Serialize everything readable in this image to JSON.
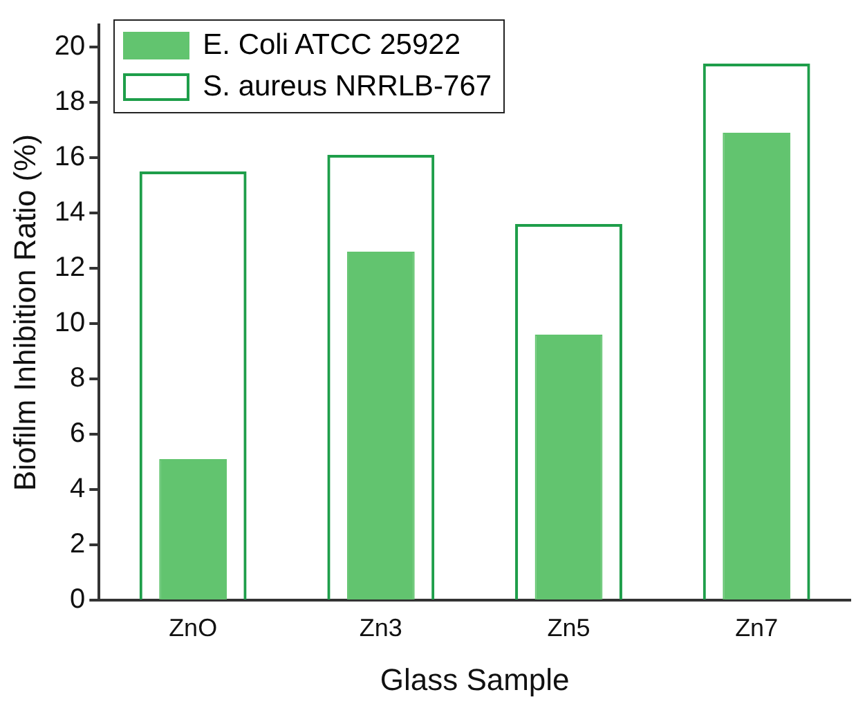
{
  "chart_data": {
    "type": "bar",
    "xlabel": "Glass Sample",
    "ylabel": "Biofilm Inhibition Ratio (%)",
    "categories": [
      "ZnO",
      "Zn3",
      "Zn5",
      "Zn7"
    ],
    "series": [
      {
        "name": "E. Coli ATCC 25922",
        "color": "#62c46f",
        "values": [
          5.1,
          12.6,
          9.6,
          16.9
        ]
      },
      {
        "name": "S. aureus NRRLB-767",
        "color": "#1e9e4a",
        "values": [
          15.5,
          16.1,
          13.6,
          19.4
        ]
      }
    ],
    "ylim": [
      0,
      20.8
    ],
    "yticks": [
      0,
      2,
      4,
      6,
      8,
      10,
      12,
      14,
      16,
      18,
      20
    ],
    "grid": false,
    "legend": "top left"
  }
}
